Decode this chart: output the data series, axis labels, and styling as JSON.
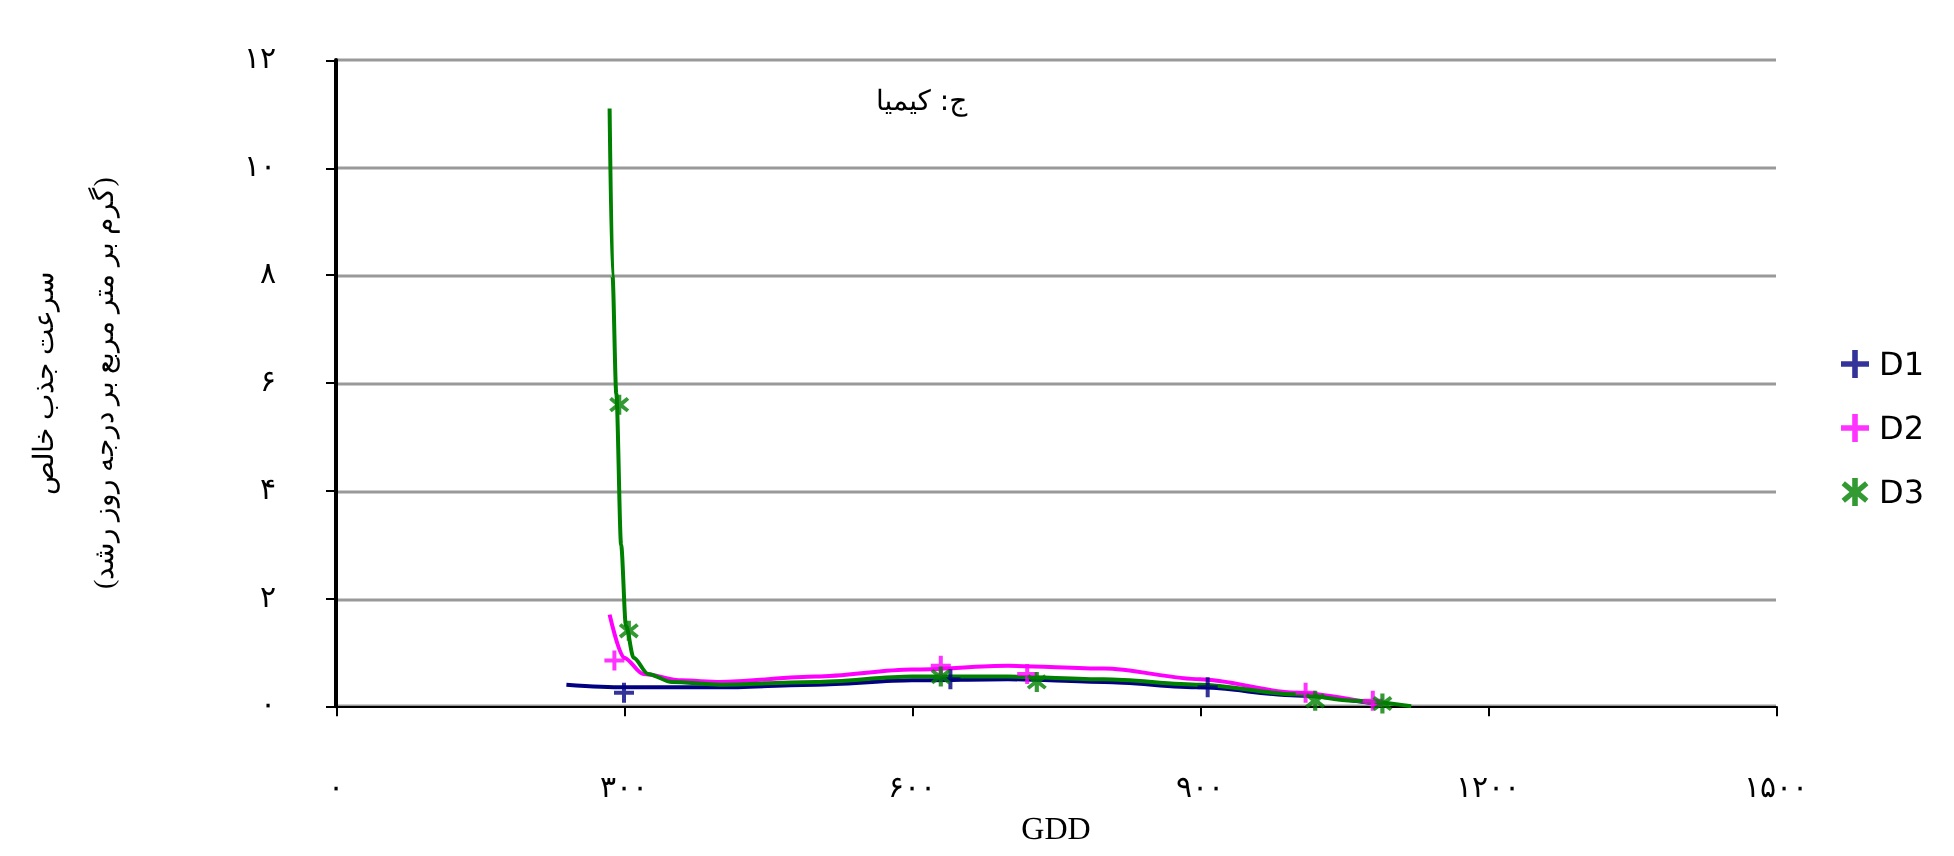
{
  "chart_data": {
    "type": "scatter",
    "annotations": [
      "ج: کیمیا"
    ],
    "xlabel": "GDD",
    "ylabel": "سرعت جذب خالص\n(گرم بر متر مربع بر درجه روز رشد)",
    "xlim": [
      0,
      1500
    ],
    "xticks": [
      {
        "value": 0,
        "label": "۰"
      },
      {
        "value": 300,
        "label": "۳۰۰"
      },
      {
        "value": 600,
        "label": "۶۰۰"
      },
      {
        "value": 900,
        "label": "۹۰۰"
      },
      {
        "value": 1200,
        "label": "۱۲۰۰"
      },
      {
        "value": 1500,
        "label": "۱۵۰۰"
      }
    ],
    "ylim": [
      0,
      12
    ],
    "yticks": [
      {
        "value": 0,
        "label": "۰"
      },
      {
        "value": 2,
        "label": "۲"
      },
      {
        "value": 4,
        "label": "۴"
      },
      {
        "value": 6,
        "label": "۶"
      },
      {
        "value": 8,
        "label": "۸"
      },
      {
        "value": 10,
        "label": "۱۰"
      },
      {
        "value": 12,
        "label": "۱۲"
      }
    ],
    "grid": "y",
    "legend": "right",
    "series": [
      {
        "name": "D1",
        "color": "#000080",
        "marker": "cross",
        "x": [
          300,
          640,
          908
        ],
        "values": [
          0.25,
          0.5,
          0.35
        ]
      },
      {
        "name": "D2",
        "color": "#ff00ff",
        "marker": "cross",
        "x": [
          290,
          630,
          720,
          1010,
          1080
        ],
        "values": [
          0.85,
          0.75,
          0.6,
          0.25,
          0.1
        ]
      },
      {
        "name": "D3",
        "color": "#008000",
        "marker": "star",
        "x": [
          295,
          305,
          630,
          730,
          1020,
          1090
        ],
        "values": [
          5.6,
          1.4,
          0.55,
          0.45,
          0.1,
          0.05
        ]
      },
      {
        "type": "line",
        "color": "#000080",
        "marker": "none",
        "x": [
          240,
          300,
          400,
          500,
          600,
          700,
          800,
          900,
          1000,
          1090
        ],
        "values": [
          0.4,
          0.35,
          0.35,
          0.4,
          0.48,
          0.5,
          0.45,
          0.35,
          0.2,
          0.03
        ]
      },
      {
        "type": "line",
        "color": "#ff00ff",
        "marker": "none",
        "x": [
          285,
          300,
          320,
          360,
          400,
          500,
          600,
          700,
          800,
          900,
          1000,
          1090
        ],
        "values": [
          1.7,
          0.9,
          0.6,
          0.48,
          0.45,
          0.55,
          0.68,
          0.75,
          0.7,
          0.5,
          0.25,
          0.02
        ]
      },
      {
        "type": "line",
        "color": "#008000",
        "marker": "none",
        "x": [
          285,
          288,
          292,
          297,
          302,
          310,
          325,
          350,
          400,
          500,
          600,
          700,
          800,
          900,
          1000,
          1060,
          1120
        ],
        "values": [
          11.1,
          8.0,
          5.8,
          3.0,
          1.5,
          0.9,
          0.6,
          0.45,
          0.4,
          0.45,
          0.55,
          0.55,
          0.5,
          0.4,
          0.22,
          0.1,
          0.0
        ]
      }
    ]
  }
}
